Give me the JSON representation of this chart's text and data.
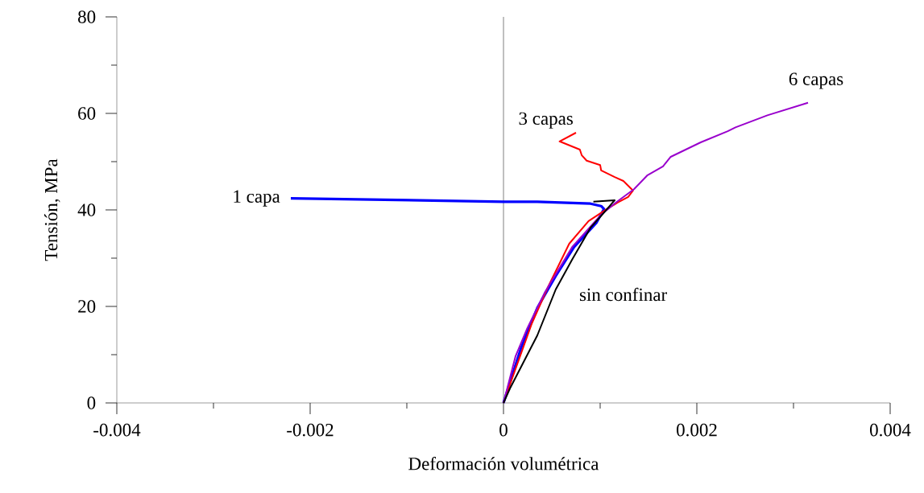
{
  "chart_data": {
    "type": "line",
    "xlabel": "Deformación volumétrica",
    "ylabel": "Tensión, MPa",
    "xlim": [
      -0.004,
      0.004
    ],
    "ylim": [
      0,
      80
    ],
    "xticks": [
      -0.004,
      {
        "value": -0.003,
        "label": null
      },
      -0.002,
      {
        "value": -0.001,
        "label": null
      },
      0,
      {
        "value": 0.001,
        "label": null
      },
      0.002,
      {
        "value": 0.003,
        "label": null
      },
      0.004
    ],
    "yticks": [
      0,
      {
        "value": 10,
        "label": null
      },
      20,
      {
        "value": 30,
        "label": null
      },
      40,
      {
        "value": 50,
        "label": null
      },
      60,
      {
        "value": 70,
        "label": null
      },
      80
    ],
    "grid": false,
    "legend": false,
    "marker": "none",
    "line_style": "solid",
    "ref_lines": [
      {
        "axis": "x",
        "value": 0,
        "color": "#808080"
      }
    ],
    "series": [
      {
        "name": "1 capa",
        "color": "#0000ff",
        "x": [
          0,
          0.00018,
          0.00035,
          0.00054,
          0.00073,
          0.00096,
          0.00104,
          0.00101,
          0.0009,
          0.00035,
          0,
          -0.0022
        ],
        "values": [
          0,
          11.3,
          19.7,
          26.3,
          32.3,
          37.3,
          40.2,
          40.8,
          41.3,
          41.7,
          41.7,
          42.4
        ]
      },
      {
        "name": "3 capas",
        "color": "#ff0000",
        "x": [
          0,
          0.0001,
          0.00029,
          0.00046,
          0.00068,
          0.00088,
          0.00107,
          0.00118,
          0.00129,
          0.00134,
          0.00124,
          0.00115,
          0.00101,
          0.001,
          0.00086,
          0.00081,
          0.00079,
          0.00058,
          0.00075
        ],
        "values": [
          0,
          5.7,
          16.3,
          24,
          33,
          37.7,
          40.2,
          41.5,
          42.7,
          44,
          46,
          46.8,
          48.2,
          49.3,
          50.2,
          51.3,
          52.5,
          54.2,
          56
        ]
      },
      {
        "name": "6 capas",
        "color": "#9900cc",
        "x": [
          0,
          0.000125,
          0.00024,
          0.00043,
          0.00071,
          0.00101,
          0.00118,
          0.00135,
          0.00149,
          0.00165,
          0.00173,
          0.00204,
          0.00232,
          0.0024,
          0.00273,
          0.00315
        ],
        "values": [
          0,
          9.7,
          15.2,
          23,
          32.3,
          39,
          41.8,
          44.3,
          47.2,
          49,
          51,
          54,
          56.3,
          57.1,
          59.6,
          62.2
        ]
      },
      {
        "name": "sin confinar",
        "color": "#000000",
        "x": [
          0,
          6.7e-05,
          0.00035,
          0.00054,
          0.00071,
          0.0009,
          0.00102,
          0.00112,
          0.00115,
          0.00093
        ],
        "values": [
          0,
          3,
          14,
          23.5,
          29.7,
          36.3,
          39,
          41.3,
          42,
          41.7
        ]
      }
    ]
  }
}
